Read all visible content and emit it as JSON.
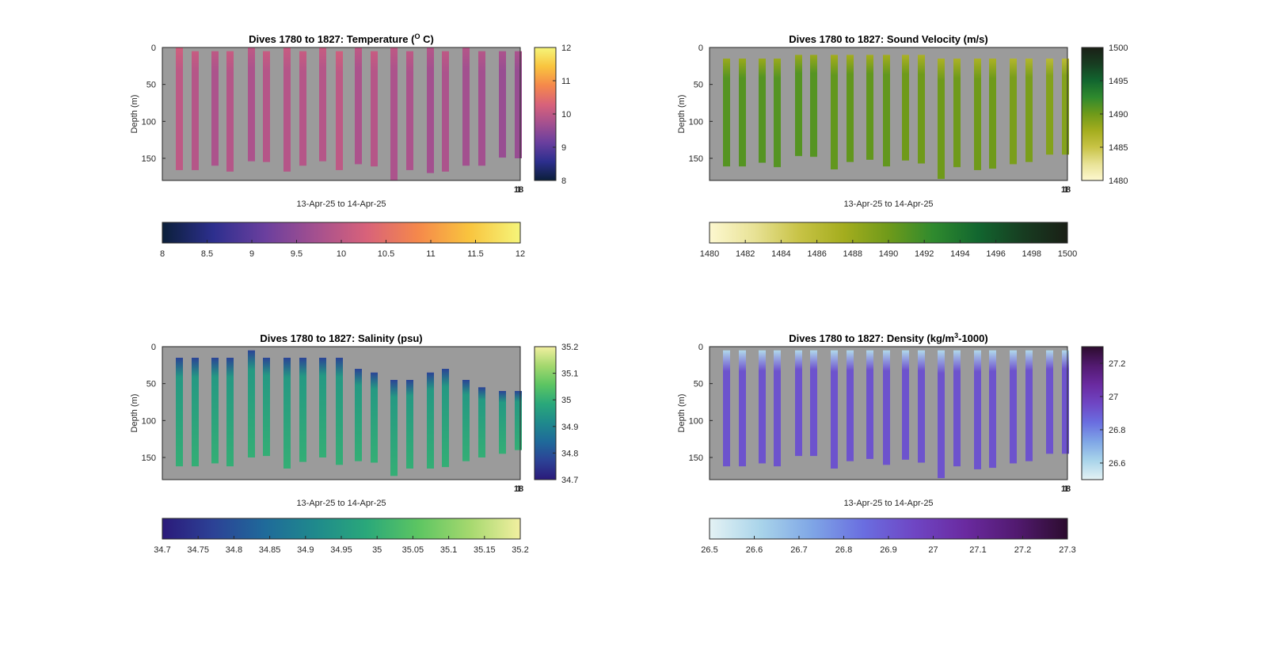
{
  "chart_data": [
    {
      "type": "heatmap",
      "title": "Dives 1780 to 1827: Temperature (",
      "title_sup": "O",
      "title_after": " C)",
      "xlabel": "13-Apr-25 to 14-Apr-25",
      "ylabel": "Depth (m)",
      "ylim": [
        0,
        180
      ],
      "y_ticks": [
        "0",
        "50",
        "100",
        "150"
      ],
      "x_tick_label": "18",
      "x_tick_label_overlap": "1",
      "cbar_right": {
        "min": 8,
        "max": 12,
        "ticks": [
          "8",
          "9",
          "10",
          "11",
          "12"
        ]
      },
      "cbar_bottom": {
        "min": 8,
        "max": 12,
        "ticks": [
          "8",
          "8.5",
          "9",
          "9.5",
          "10",
          "10.5",
          "11",
          "11.5",
          "12"
        ]
      },
      "colormap": [
        "#0b1f3a",
        "#2d2f8e",
        "#6a3f9e",
        "#a4508f",
        "#d8627a",
        "#f5884b",
        "#f9c43e",
        "#f5f57a"
      ],
      "profiles": [
        {
          "top": 0,
          "bottom": 166,
          "value": 10.0
        },
        {
          "top": 5,
          "bottom": 166,
          "value": 9.9
        },
        {
          "top": 5,
          "bottom": 160,
          "value": 9.8
        },
        {
          "top": 5,
          "bottom": 168,
          "value": 9.9
        },
        {
          "top": 0,
          "bottom": 154,
          "value": 9.8
        },
        {
          "top": 5,
          "bottom": 155,
          "value": 9.9
        },
        {
          "top": 0,
          "bottom": 168,
          "value": 9.9
        },
        {
          "top": 5,
          "bottom": 160,
          "value": 9.9
        },
        {
          "top": 0,
          "bottom": 154,
          "value": 9.9
        },
        {
          "top": 5,
          "bottom": 166,
          "value": 10.0
        },
        {
          "top": 0,
          "bottom": 158,
          "value": 9.8
        },
        {
          "top": 5,
          "bottom": 161,
          "value": 9.9
        },
        {
          "top": 0,
          "bottom": 180,
          "value": 9.8
        },
        {
          "top": 5,
          "bottom": 166,
          "value": 9.8
        },
        {
          "top": 0,
          "bottom": 170,
          "value": 9.7
        },
        {
          "top": 5,
          "bottom": 168,
          "value": 9.8
        },
        {
          "top": 0,
          "bottom": 160,
          "value": 9.7
        },
        {
          "top": 5,
          "bottom": 160,
          "value": 9.7
        },
        {
          "top": 5,
          "bottom": 149,
          "value": 9.6
        },
        {
          "top": 5,
          "bottom": 150,
          "value": 9.6
        }
      ]
    },
    {
      "type": "heatmap",
      "title": "Dives 1780 to 1827: Sound Velocity (m/s)",
      "xlabel": "13-Apr-25 to 14-Apr-25",
      "ylabel": "Depth (m)",
      "ylim": [
        0,
        180
      ],
      "y_ticks": [
        "0",
        "50",
        "100",
        "150"
      ],
      "x_tick_label": "18",
      "x_tick_label_overlap": "1",
      "cbar_right": {
        "min": 1480,
        "max": 1500,
        "ticks": [
          "1480",
          "1485",
          "1490",
          "1495",
          "1500"
        ]
      },
      "cbar_bottom": {
        "min": 1480,
        "max": 1500,
        "ticks": [
          "1480",
          "1482",
          "1484",
          "1486",
          "1488",
          "1490",
          "1492",
          "1494",
          "1496",
          "1498",
          "1500"
        ]
      },
      "colormap": [
        "#fdf8d0",
        "#e8e296",
        "#c8c346",
        "#a4ad1e",
        "#6f9a1a",
        "#2f8a2e",
        "#12662f",
        "#173d21",
        "#1a1f16"
      ],
      "profiles": [
        {
          "top": 15,
          "bottom": 161,
          "value": 1491.0
        },
        {
          "top": 15,
          "bottom": 161,
          "value": 1491.0
        },
        {
          "top": 15,
          "bottom": 156,
          "value": 1491.0
        },
        {
          "top": 15,
          "bottom": 162,
          "value": 1491.0
        },
        {
          "top": 10,
          "bottom": 147,
          "value": 1491.0
        },
        {
          "top": 10,
          "bottom": 148,
          "value": 1491.0
        },
        {
          "top": 10,
          "bottom": 165,
          "value": 1490.5
        },
        {
          "top": 10,
          "bottom": 155,
          "value": 1490.5
        },
        {
          "top": 10,
          "bottom": 152,
          "value": 1490.5
        },
        {
          "top": 10,
          "bottom": 161,
          "value": 1490.5
        },
        {
          "top": 10,
          "bottom": 153,
          "value": 1490.0
        },
        {
          "top": 10,
          "bottom": 157,
          "value": 1490.0
        },
        {
          "top": 15,
          "bottom": 178,
          "value": 1490.0
        },
        {
          "top": 15,
          "bottom": 162,
          "value": 1490.0
        },
        {
          "top": 15,
          "bottom": 166,
          "value": 1490.0
        },
        {
          "top": 15,
          "bottom": 164,
          "value": 1490.0
        },
        {
          "top": 15,
          "bottom": 158,
          "value": 1489.5
        },
        {
          "top": 15,
          "bottom": 155,
          "value": 1489.5
        },
        {
          "top": 15,
          "bottom": 145,
          "value": 1489.0
        },
        {
          "top": 15,
          "bottom": 145,
          "value": 1489.0
        }
      ]
    },
    {
      "type": "heatmap",
      "title": "Dives 1780 to 1827: Salinity (psu)",
      "xlabel": "13-Apr-25 to 14-Apr-25",
      "ylabel": "Depth (m)",
      "ylim": [
        0,
        180
      ],
      "y_ticks": [
        "0",
        "50",
        "100",
        "150"
      ],
      "x_tick_label": "18",
      "x_tick_label_overlap": "1",
      "cbar_right": {
        "min": 34.7,
        "max": 35.2,
        "ticks": [
          "34.7",
          "34.8",
          "34.9",
          "35",
          "35.1",
          "35.2"
        ]
      },
      "cbar_bottom": {
        "min": 34.7,
        "max": 35.2,
        "ticks": [
          "34.7",
          "34.75",
          "34.8",
          "34.85",
          "34.9",
          "34.95",
          "35",
          "35.05",
          "35.1",
          "35.15",
          "35.2"
        ]
      },
      "colormap": [
        "#2b1a7a",
        "#2c4296",
        "#1f6a9a",
        "#1f8a8c",
        "#2aa87a",
        "#5cc562",
        "#a4d86e",
        "#f2efa0"
      ],
      "profiles": [
        {
          "top": 15,
          "bottom": 162,
          "value": 34.95
        },
        {
          "top": 15,
          "bottom": 162,
          "value": 34.95
        },
        {
          "top": 15,
          "bottom": 158,
          "value": 34.95
        },
        {
          "top": 15,
          "bottom": 162,
          "value": 34.95
        },
        {
          "top": 5,
          "bottom": 150,
          "value": 34.95
        },
        {
          "top": 15,
          "bottom": 148,
          "value": 34.95
        },
        {
          "top": 15,
          "bottom": 165,
          "value": 34.95
        },
        {
          "top": 15,
          "bottom": 156,
          "value": 34.95
        },
        {
          "top": 15,
          "bottom": 150,
          "value": 34.95
        },
        {
          "top": 15,
          "bottom": 160,
          "value": 34.95
        },
        {
          "top": 30,
          "bottom": 155,
          "value": 34.95
        },
        {
          "top": 35,
          "bottom": 157,
          "value": 34.95
        },
        {
          "top": 45,
          "bottom": 175,
          "value": 34.95
        },
        {
          "top": 45,
          "bottom": 165,
          "value": 34.95
        },
        {
          "top": 35,
          "bottom": 165,
          "value": 34.95
        },
        {
          "top": 30,
          "bottom": 163,
          "value": 34.95
        },
        {
          "top": 45,
          "bottom": 155,
          "value": 34.95
        },
        {
          "top": 55,
          "bottom": 150,
          "value": 34.95
        },
        {
          "top": 60,
          "bottom": 145,
          "value": 34.95
        },
        {
          "top": 60,
          "bottom": 140,
          "value": 34.95
        }
      ]
    },
    {
      "type": "heatmap",
      "title": "Dives 1780 to 1827: Density (kg/m",
      "title_sup": "3",
      "title_after": "-1000)",
      "xlabel": "13-Apr-25 to 14-Apr-25",
      "ylabel": "Depth (m)",
      "ylim": [
        0,
        180
      ],
      "y_ticks": [
        "0",
        "50",
        "100",
        "150"
      ],
      "x_tick_label": "18",
      "x_tick_label_overlap": "1",
      "cbar_right": {
        "min": 26.5,
        "max": 27.3,
        "ticks": [
          "26.6",
          "26.8",
          "27",
          "27.2"
        ]
      },
      "cbar_bottom": {
        "min": 26.5,
        "max": 27.3,
        "ticks": [
          "26.5",
          "26.6",
          "26.7",
          "26.8",
          "26.9",
          "27",
          "27.1",
          "27.2",
          "27.3"
        ]
      },
      "colormap": [
        "#e4f2f4",
        "#a9d4ea",
        "#7fa6e6",
        "#6a6ee0",
        "#6f46c4",
        "#6a2aa0",
        "#521a70",
        "#2c0c2e"
      ],
      "profiles": [
        {
          "top": 5,
          "bottom": 162,
          "value": 26.92
        },
        {
          "top": 5,
          "bottom": 162,
          "value": 26.92
        },
        {
          "top": 5,
          "bottom": 158,
          "value": 26.92
        },
        {
          "top": 5,
          "bottom": 162,
          "value": 26.92
        },
        {
          "top": 5,
          "bottom": 148,
          "value": 26.92
        },
        {
          "top": 5,
          "bottom": 148,
          "value": 26.92
        },
        {
          "top": 5,
          "bottom": 165,
          "value": 26.92
        },
        {
          "top": 5,
          "bottom": 155,
          "value": 26.92
        },
        {
          "top": 5,
          "bottom": 152,
          "value": 26.92
        },
        {
          "top": 5,
          "bottom": 160,
          "value": 26.92
        },
        {
          "top": 5,
          "bottom": 153,
          "value": 26.92
        },
        {
          "top": 5,
          "bottom": 157,
          "value": 26.92
        },
        {
          "top": 5,
          "bottom": 178,
          "value": 26.92
        },
        {
          "top": 5,
          "bottom": 162,
          "value": 26.92
        },
        {
          "top": 5,
          "bottom": 166,
          "value": 26.92
        },
        {
          "top": 5,
          "bottom": 164,
          "value": 26.92
        },
        {
          "top": 5,
          "bottom": 158,
          "value": 26.92
        },
        {
          "top": 5,
          "bottom": 155,
          "value": 26.92
        },
        {
          "top": 5,
          "bottom": 145,
          "value": 26.92
        },
        {
          "top": 5,
          "bottom": 145,
          "value": 26.92
        }
      ]
    }
  ]
}
